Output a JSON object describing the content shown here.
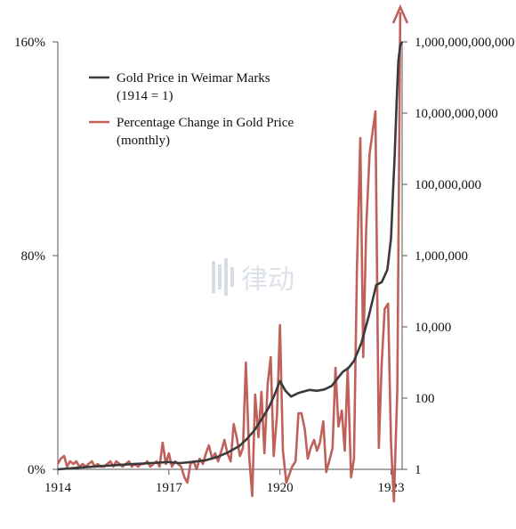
{
  "colors": {
    "gold_price": "#3a3a3a",
    "pct_change": "#c0605a",
    "axis": "#555555"
  },
  "watermark": {
    "text": "律动"
  },
  "chart_data": {
    "type": "line",
    "title": "",
    "xlabel": "",
    "ylabel": "",
    "x_range": [
      1914.0,
      1923.3
    ],
    "x_ticks": [
      1914,
      1917,
      1920,
      1923
    ],
    "x_tick_labels": [
      "1914",
      "1917",
      "1920",
      "1923"
    ],
    "y_left": {
      "range": [
        0,
        160
      ],
      "ticks": [
        0,
        80,
        160
      ],
      "tick_labels": [
        "0%",
        "80%",
        "160%"
      ]
    },
    "y_right": {
      "scale": "log",
      "range": [
        1,
        1000000000000
      ],
      "ticks": [
        1,
        100,
        10000,
        1000000,
        100000000,
        10000000000,
        1000000000000
      ],
      "tick_labels": [
        "1",
        "100",
        "10,000",
        "1,000,000",
        "100,000,000",
        "10,000,000,000",
        "1,000,000,000,000"
      ]
    },
    "grid": false,
    "legend": {
      "placement": "top-left",
      "entries": [
        {
          "line1": "Gold Price in Weimar Marks",
          "line2": "(1914 = 1)"
        },
        {
          "line1": "Percentage Change in Gold Price",
          "line2": "(monthly)"
        }
      ]
    },
    "series": [
      {
        "name": "Gold Price in Weimar Marks (1914 = 1)",
        "axis": "right",
        "x": [
          1914.0,
          1914.5,
          1915.0,
          1915.5,
          1916.0,
          1916.5,
          1917.0,
          1917.3,
          1917.6,
          1918.0,
          1918.3,
          1918.6,
          1918.9,
          1919.1,
          1919.3,
          1919.5,
          1919.7,
          1919.85,
          1920.0,
          1920.15,
          1920.3,
          1920.5,
          1920.8,
          1921.0,
          1921.2,
          1921.4,
          1921.55,
          1921.7,
          1921.85,
          1922.0,
          1922.2,
          1922.4,
          1922.6,
          1922.75,
          1922.9,
          1923.0,
          1923.05,
          1923.1,
          1923.15,
          1923.2,
          1923.25,
          1923.3
        ],
        "values": [
          1,
          1.1,
          1.2,
          1.3,
          1.4,
          1.5,
          1.6,
          1.5,
          1.6,
          1.8,
          2.2,
          3,
          4.5,
          7,
          12,
          25,
          55,
          120,
          300,
          160,
          110,
          140,
          170,
          160,
          175,
          220,
          350,
          550,
          700,
          1100,
          3500,
          20000,
          150000,
          180000,
          400000,
          3000000,
          50000000,
          700000000,
          20000000000,
          300000000000,
          800000000000,
          1000000000000
        ]
      },
      {
        "name": "Percentage Change in Gold Price (monthly)",
        "axis": "left",
        "x": [
          1914.0,
          1914.08,
          1914.17,
          1914.25,
          1914.33,
          1914.42,
          1914.5,
          1914.58,
          1914.67,
          1914.75,
          1914.83,
          1914.92,
          1915.0,
          1915.08,
          1915.17,
          1915.25,
          1915.33,
          1915.42,
          1915.5,
          1915.58,
          1915.67,
          1915.75,
          1915.83,
          1915.92,
          1916.0,
          1916.08,
          1916.17,
          1916.25,
          1916.33,
          1916.42,
          1916.5,
          1916.58,
          1916.67,
          1916.75,
          1916.83,
          1916.92,
          1917.0,
          1917.08,
          1917.17,
          1917.25,
          1917.33,
          1917.42,
          1917.5,
          1917.58,
          1917.67,
          1917.75,
          1917.83,
          1917.92,
          1918.0,
          1918.08,
          1918.17,
          1918.25,
          1918.33,
          1918.42,
          1918.5,
          1918.58,
          1918.67,
          1918.75,
          1918.83,
          1918.92,
          1919.0,
          1919.08,
          1919.17,
          1919.25,
          1919.33,
          1919.42,
          1919.5,
          1919.58,
          1919.67,
          1919.75,
          1919.83,
          1919.92,
          1920.0,
          1920.08,
          1920.17,
          1920.25,
          1920.33,
          1920.42,
          1920.5,
          1920.58,
          1920.67,
          1920.75,
          1920.83,
          1920.92,
          1921.0,
          1921.08,
          1921.17,
          1921.25,
          1921.33,
          1921.42,
          1921.5,
          1921.58,
          1921.67,
          1921.75,
          1921.83,
          1921.92,
          1922.0,
          1922.08,
          1922.17,
          1922.25,
          1922.33,
          1922.42,
          1922.5,
          1922.58,
          1922.67,
          1922.75,
          1922.83,
          1922.92,
          1923.0,
          1923.08,
          1923.17,
          1923.25
        ],
        "values": [
          2,
          4,
          5,
          1,
          3,
          2,
          3,
          1,
          2,
          1,
          2,
          3,
          1,
          2,
          1,
          1,
          2,
          3,
          1,
          3,
          2,
          1,
          2,
          3,
          1,
          2,
          1,
          2,
          2,
          3,
          1,
          2,
          3,
          1,
          10,
          2,
          6,
          1,
          3,
          2,
          1,
          -3,
          -5,
          2,
          3,
          0,
          4,
          2,
          6,
          9,
          4,
          6,
          3,
          7,
          11,
          6,
          3,
          17,
          12,
          5,
          8,
          40,
          5,
          -10,
          28,
          12,
          29,
          6,
          32,
          42,
          5,
          20,
          54,
          7,
          -5,
          -2,
          1,
          3,
          21,
          21,
          15,
          4,
          8,
          11,
          7,
          10,
          18,
          -1,
          3,
          8,
          38,
          16,
          22,
          7,
          38,
          -3,
          4,
          75,
          124,
          42,
          90,
          118,
          126,
          134,
          8,
          40,
          60,
          62,
          10,
          -12,
          30,
          160
        ]
      }
    ]
  }
}
